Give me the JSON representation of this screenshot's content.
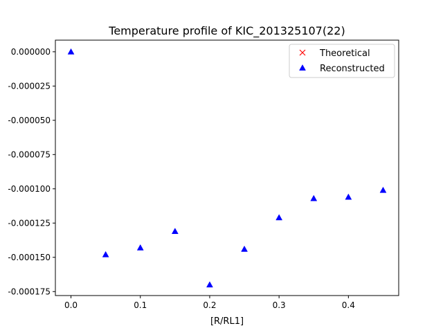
{
  "chart_data": {
    "type": "scatter",
    "title": "Temperature profile of KIC_201325107(22)",
    "xlabel": "[R/RL1]",
    "ylabel": "",
    "xlim": [
      -0.0225,
      0.4725
    ],
    "ylim": [
      -0.0001779,
      8.5e-06
    ],
    "xticks": [
      0.0,
      0.1,
      0.2,
      0.3,
      0.4
    ],
    "xtick_labels": [
      "0.0",
      "0.1",
      "0.2",
      "0.3",
      "0.4"
    ],
    "yticks": [
      0.0,
      -2.5e-05,
      -5e-05,
      -7.5e-05,
      -0.0001,
      -0.000125,
      -0.00015,
      -0.000175
    ],
    "ytick_labels": [
      "0.000000",
      "-0.000025",
      "-0.000050",
      "-0.000075",
      "-0.000100",
      "-0.000125",
      "-0.000150",
      "-0.000175"
    ],
    "grid": false,
    "legend_position": "top-right",
    "series": [
      {
        "name": "Theoretical",
        "marker": "x",
        "color": "#ff0000",
        "x": [],
        "y": []
      },
      {
        "name": "Reconstructed",
        "marker": "triangle",
        "color": "#0000ff",
        "x": [
          0.0,
          0.05,
          0.1,
          0.15,
          0.2,
          0.25,
          0.3,
          0.35,
          0.4,
          0.45
        ],
        "y": [
          0.0,
          -0.000148,
          -0.000143,
          -0.000131,
          -0.00017,
          -0.000144,
          -0.000121,
          -0.000107,
          -0.000106,
          -0.000101
        ]
      }
    ]
  }
}
